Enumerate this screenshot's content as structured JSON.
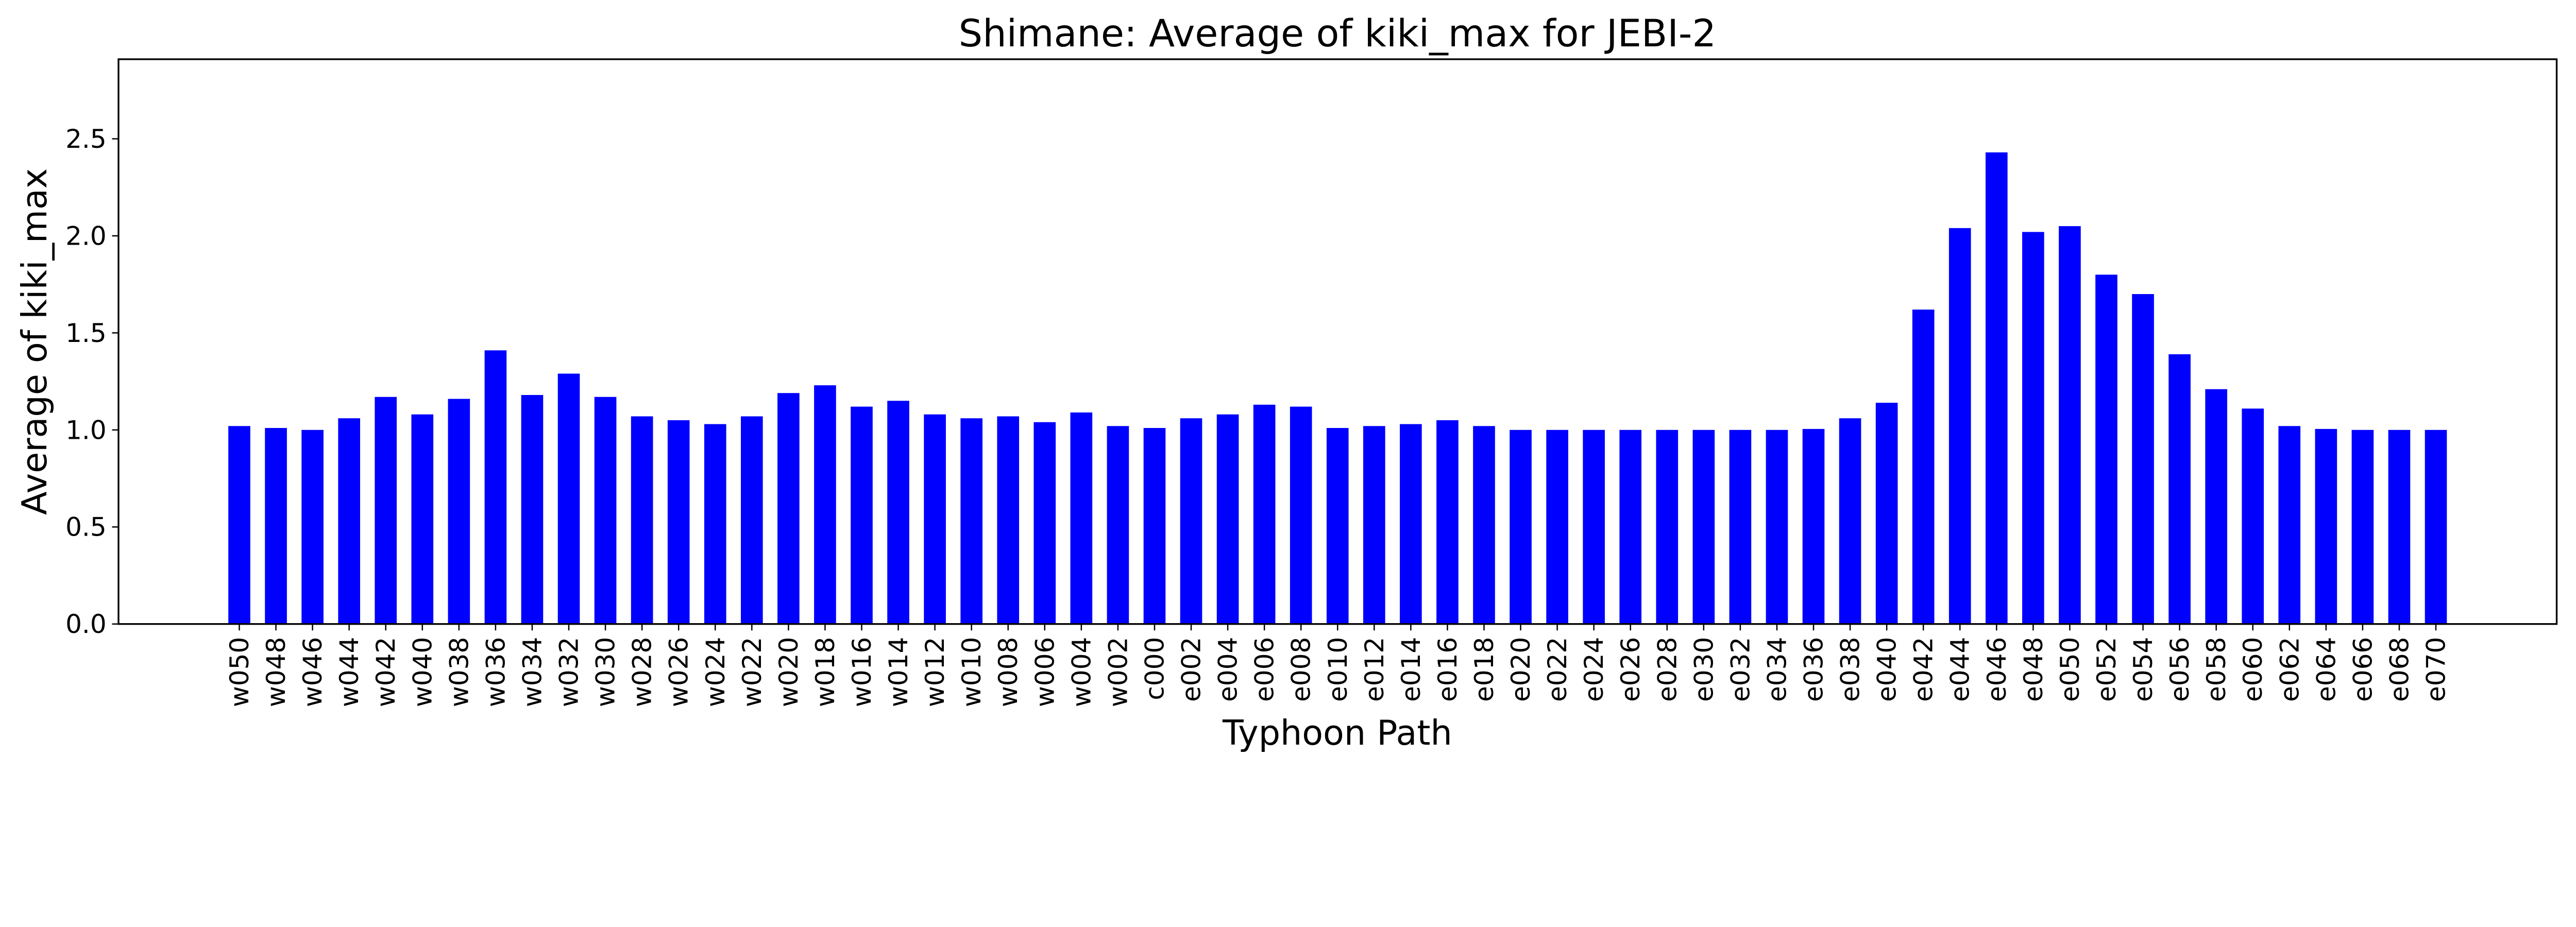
{
  "chart_data": {
    "type": "bar",
    "title": "Shimane: Average of kiki_max for JEBI-2",
    "xlabel": "Typhoon Path",
    "ylabel": "Average of kiki_max",
    "ylim": [
      0,
      2.91
    ],
    "xlim": [
      -3.3,
      63.3
    ],
    "grid": false,
    "bar_color": "#0000ff",
    "yticks": [
      0.0,
      0.5,
      1.0,
      1.5,
      2.0,
      2.5
    ],
    "ytick_labels": [
      "0.0",
      "0.5",
      "1.0",
      "1.5",
      "2.0",
      "2.5"
    ],
    "categories": [
      "w050",
      "w048",
      "w046",
      "w044",
      "w042",
      "w040",
      "w038",
      "w036",
      "w034",
      "w032",
      "w030",
      "w028",
      "w026",
      "w024",
      "w022",
      "w020",
      "w018",
      "w016",
      "w014",
      "w012",
      "w010",
      "w008",
      "w006",
      "w004",
      "w002",
      "c000",
      "e002",
      "e004",
      "e006",
      "e008",
      "e010",
      "e012",
      "e014",
      "e016",
      "e018",
      "e020",
      "e022",
      "e024",
      "e026",
      "e028",
      "e030",
      "e032",
      "e034",
      "e036",
      "e038",
      "e040",
      "e042",
      "e044",
      "e046",
      "e048",
      "e050",
      "e052",
      "e054",
      "e056",
      "e058",
      "e060",
      "e062",
      "e064",
      "e066",
      "e068",
      "e070"
    ],
    "values": [
      1.02,
      1.01,
      1.0,
      1.06,
      1.17,
      1.08,
      1.16,
      1.41,
      1.18,
      1.29,
      1.17,
      1.07,
      1.05,
      1.03,
      1.07,
      1.19,
      1.23,
      1.12,
      1.15,
      1.08,
      1.06,
      1.07,
      1.04,
      1.09,
      1.02,
      1.01,
      1.06,
      1.08,
      1.13,
      1.12,
      1.01,
      1.02,
      1.03,
      1.05,
      1.02,
      1.0,
      1.0,
      1.0,
      1.0,
      1.0,
      1.0,
      1.0,
      1.0,
      1.005,
      1.06,
      1.14,
      1.62,
      2.04,
      2.43,
      2.02,
      2.05,
      1.8,
      1.7,
      1.39,
      1.21,
      1.11,
      1.02,
      1.005,
      1.0,
      1.0,
      1.0
    ]
  }
}
